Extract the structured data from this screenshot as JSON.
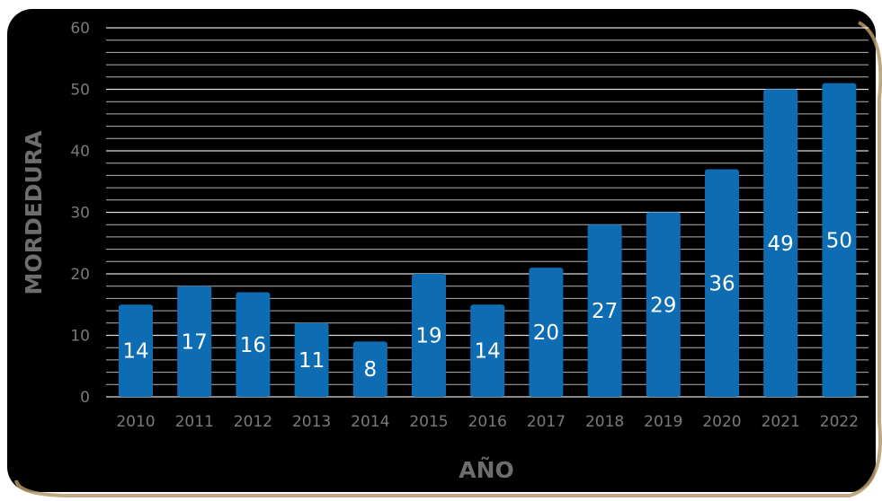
{
  "chart_data": {
    "type": "bar",
    "title": "",
    "xlabel": "AÑO",
    "ylabel": "MORDEDURA",
    "categories": [
      "2010",
      "2011",
      "2012",
      "2013",
      "2014",
      "2015",
      "2016",
      "2017",
      "2018",
      "2019",
      "2020",
      "2021",
      "2022"
    ],
    "values": [
      14,
      17,
      16,
      11,
      8,
      19,
      14,
      20,
      27,
      29,
      36,
      49,
      50
    ],
    "ylim": [
      0,
      60
    ],
    "yticks": [
      0,
      10,
      20,
      30,
      40,
      50,
      60
    ],
    "grid": true,
    "legend": "none",
    "colors": {
      "background": "#000000",
      "bar": "#0e6cb3",
      "grid": "#ffffff",
      "tick_label": "#7a7a7a",
      "data_label": "#ffffff",
      "axis_title": "#6d6d6d",
      "frame_accent": "#b59a6a"
    }
  }
}
